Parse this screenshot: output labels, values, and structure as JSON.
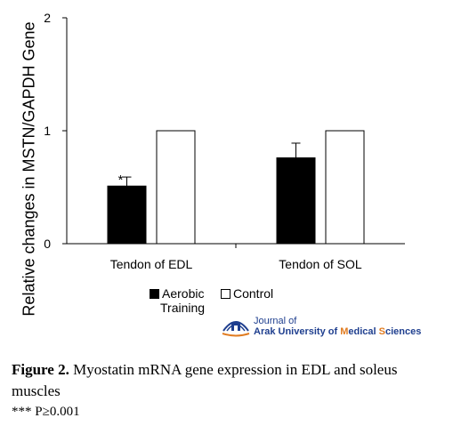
{
  "chart_data": {
    "type": "bar",
    "categories": [
      "Tendon of EDL",
      "Tendon of SOL"
    ],
    "series": [
      {
        "name": "Aerobic Training",
        "color": "#000000",
        "values": [
          0.51,
          0.76
        ],
        "errors": [
          0.08,
          0.13
        ]
      },
      {
        "name": "Control",
        "color": "#ffffff",
        "values": [
          1.0,
          1.0
        ],
        "errors": [
          0.0,
          0.0
        ]
      }
    ],
    "ylabel": "Relative changes in MSTN/GAPDH Gene",
    "xlabel": "",
    "ylim": [
      0,
      2
    ],
    "yticks": [
      "0",
      "1",
      "2"
    ],
    "annotations": [
      {
        "text": "*",
        "category": "Tendon of EDL",
        "series": "Aerobic Training"
      }
    ],
    "grid": false,
    "legend": "bottom"
  },
  "legend": {
    "aerobic_line1": "Aerobic",
    "aerobic_line2": "Training",
    "control": "Control"
  },
  "logo": {
    "line1_a": "Journal of",
    "line2_a": "Arak University of ",
    "line2_b": "M",
    "line2_c": "edical ",
    "line2_d": "S",
    "line2_e": "ciences"
  },
  "caption": {
    "label": "Figure 2.",
    "text": " Myostatin mRNA gene expression in EDL and soleus muscles"
  },
  "note": "*** P≥0.001",
  "colors": {
    "logo_blue": "#1f3f8f",
    "logo_orange": "#e07b20"
  }
}
